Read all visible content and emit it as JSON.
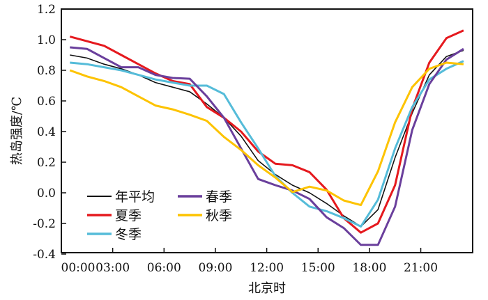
{
  "chart_data": {
    "type": "line",
    "xlabel": "北京时",
    "ylabel": "热岛强度/℃",
    "ylim": [
      -0.4,
      1.2
    ],
    "yticks": [
      "-0.4",
      "-0.2",
      "0.0",
      "0.2",
      "0.4",
      "0.6",
      "0.8",
      "1.0",
      "1.2"
    ],
    "xticks": [
      "00:00",
      "03:00",
      "06:00",
      "09:00",
      "12:00",
      "15:00",
      "18:00",
      "21:00"
    ],
    "x_hours": [
      0.5,
      1.5,
      2.5,
      3.5,
      4.5,
      5.5,
      6.5,
      7.5,
      8.5,
      9.5,
      10.5,
      11.5,
      12.5,
      13.5,
      14.5,
      15.5,
      16.5,
      17.5,
      18.5,
      19.5,
      20.5,
      21.5,
      22.5,
      23.5
    ],
    "grid": false,
    "legend_placement": "bottom-left",
    "series": [
      {
        "name": "年平均",
        "color": "#111111",
        "values": [
          0.9,
          0.88,
          0.84,
          0.81,
          0.77,
          0.72,
          0.69,
          0.66,
          0.58,
          0.49,
          0.37,
          0.21,
          0.12,
          0.05,
          0.0,
          -0.07,
          -0.15,
          -0.22,
          -0.11,
          0.23,
          0.52,
          0.77,
          0.89,
          0.93
        ]
      },
      {
        "name": "夏季",
        "color": "#e5191e",
        "values": [
          1.02,
          0.99,
          0.96,
          0.9,
          0.84,
          0.78,
          0.73,
          0.71,
          0.56,
          0.49,
          0.4,
          0.27,
          0.19,
          0.18,
          0.135,
          0.02,
          -0.165,
          -0.26,
          -0.2,
          0.05,
          0.55,
          0.85,
          1.01,
          1.06
        ]
      },
      {
        "name": "冬季",
        "color": "#55bcd9",
        "values": [
          0.85,
          0.84,
          0.82,
          0.8,
          0.77,
          0.74,
          0.72,
          0.7,
          0.7,
          0.645,
          0.46,
          0.29,
          0.11,
          0.0,
          -0.09,
          -0.12,
          -0.165,
          -0.22,
          -0.045,
          0.29,
          0.56,
          0.74,
          0.81,
          0.86
        ]
      },
      {
        "name": "春季",
        "color": "#6a3f9c",
        "values": [
          0.95,
          0.94,
          0.88,
          0.82,
          0.82,
          0.77,
          0.75,
          0.745,
          0.63,
          0.49,
          0.29,
          0.09,
          0.05,
          0.015,
          -0.04,
          -0.16,
          -0.23,
          -0.34,
          -0.34,
          -0.09,
          0.41,
          0.71,
          0.87,
          0.94
        ]
      },
      {
        "name": "秋季",
        "color": "#fdc300",
        "values": [
          0.8,
          0.76,
          0.73,
          0.69,
          0.63,
          0.57,
          0.545,
          0.51,
          0.47,
          0.365,
          0.28,
          0.18,
          0.1,
          0.005,
          0.04,
          0.015,
          -0.05,
          -0.08,
          0.14,
          0.46,
          0.69,
          0.81,
          0.85,
          0.84
        ]
      }
    ]
  }
}
